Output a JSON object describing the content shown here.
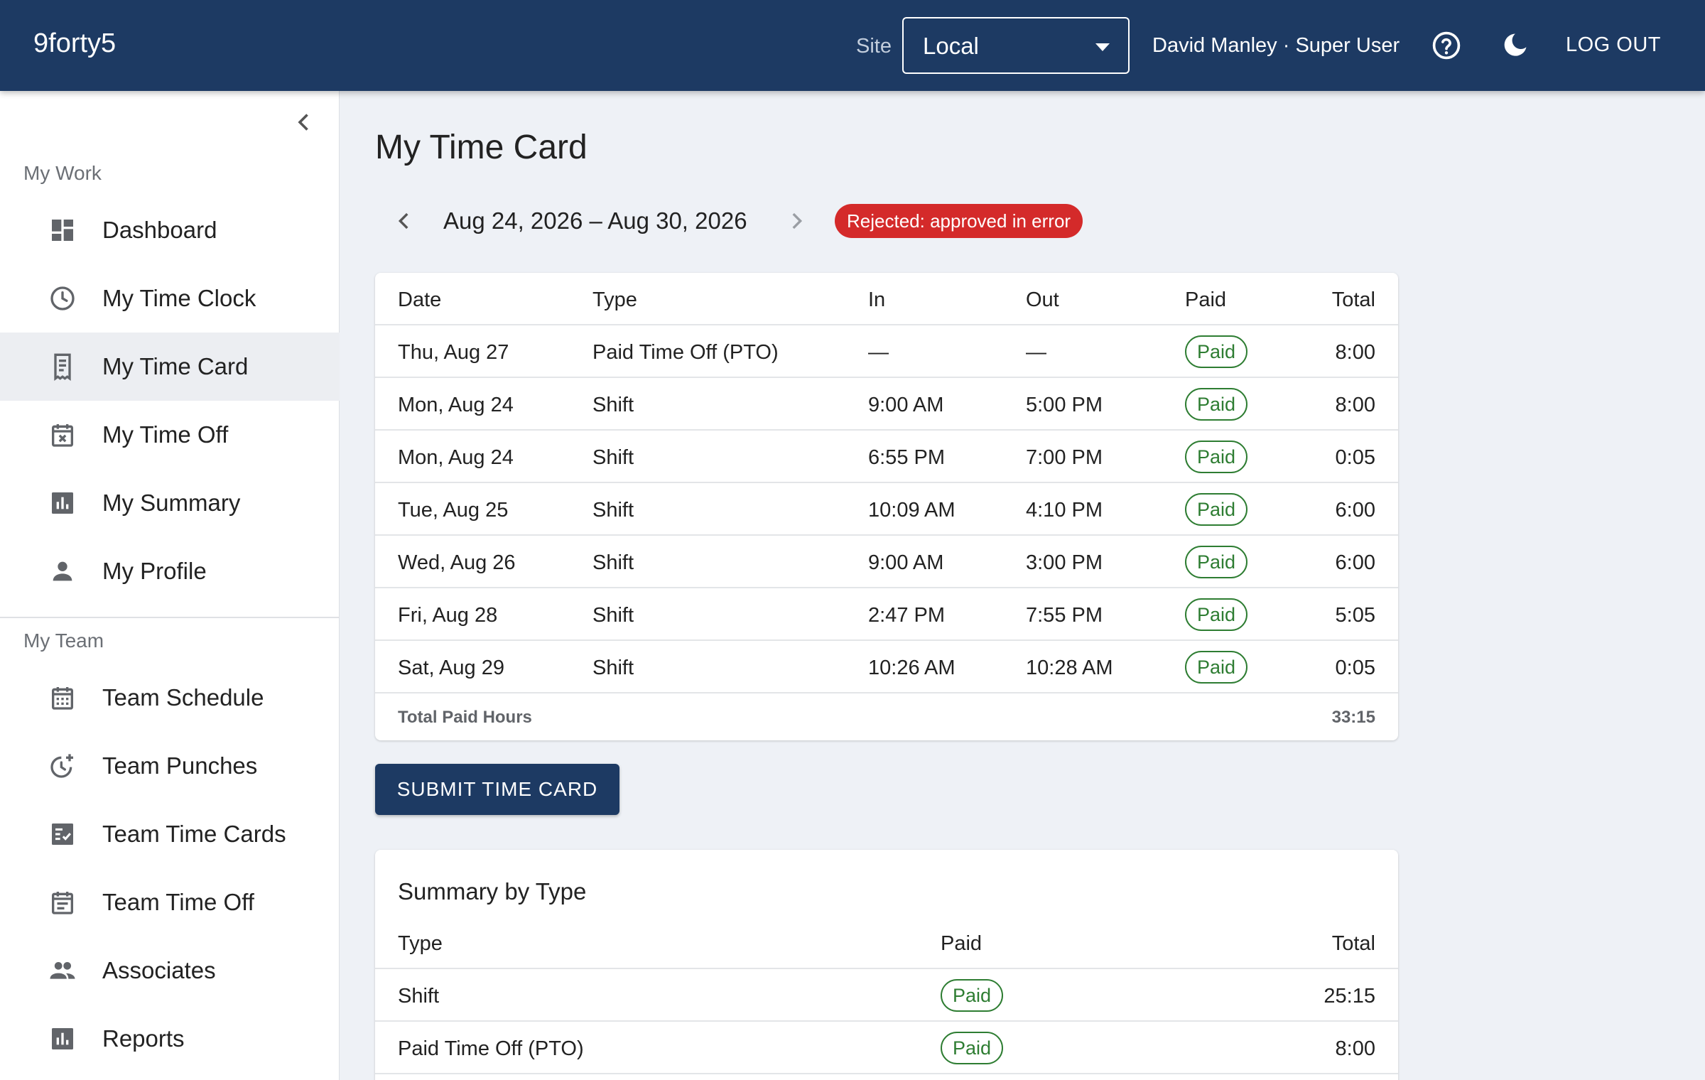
{
  "app": {
    "brand": "9forty5"
  },
  "header": {
    "site_label": "Site",
    "site_value": "Local",
    "user": "David Manley · Super User",
    "logout": "LOG OUT",
    "help_icon": "help-circle-icon",
    "theme_icon": "moon-icon"
  },
  "sidebar": {
    "my_work_label": "My Work",
    "my_team_label": "My Team",
    "my_work": [
      {
        "label": "Dashboard",
        "icon": "dashboard-icon"
      },
      {
        "label": "My Time Clock",
        "icon": "clock-icon"
      },
      {
        "label": "My Time Card",
        "icon": "receipt-icon",
        "active": true
      },
      {
        "label": "My Time Off",
        "icon": "calendar-x-icon"
      },
      {
        "label": "My Summary",
        "icon": "bar-chart-icon"
      },
      {
        "label": "My Profile",
        "icon": "person-icon"
      }
    ],
    "my_team": [
      {
        "label": "Team Schedule",
        "icon": "calendar-grid-icon"
      },
      {
        "label": "Team Punches",
        "icon": "clock-plus-icon"
      },
      {
        "label": "Team Time Cards",
        "icon": "checklist-icon"
      },
      {
        "label": "Team Time Off",
        "icon": "calendar-lines-icon"
      },
      {
        "label": "Associates",
        "icon": "people-icon"
      },
      {
        "label": "Reports",
        "icon": "bar-chart-icon"
      }
    ]
  },
  "main": {
    "title": "My Time Card",
    "date_range": "Aug 24, 2026 – Aug 30, 2026",
    "status": "Rejected: approved in error",
    "status_color": "#d42a2a",
    "table": {
      "headers": {
        "date": "Date",
        "type": "Type",
        "in": "In",
        "out": "Out",
        "paid": "Paid",
        "total": "Total"
      },
      "rows": [
        {
          "date": "Thu, Aug 27",
          "type": "Paid Time Off (PTO)",
          "in": "—",
          "out": "—",
          "paid": "Paid",
          "total": "8:00"
        },
        {
          "date": "Mon, Aug 24",
          "type": "Shift",
          "in": "9:00 AM",
          "out": "5:00 PM",
          "paid": "Paid",
          "total": "8:00"
        },
        {
          "date": "Mon, Aug 24",
          "type": "Shift",
          "in": "6:55 PM",
          "out": "7:00 PM",
          "paid": "Paid",
          "total": "0:05"
        },
        {
          "date": "Tue, Aug 25",
          "type": "Shift",
          "in": "10:09 AM",
          "out": "4:10 PM",
          "paid": "Paid",
          "total": "6:00"
        },
        {
          "date": "Wed, Aug 26",
          "type": "Shift",
          "in": "9:00 AM",
          "out": "3:00 PM",
          "paid": "Paid",
          "total": "6:00"
        },
        {
          "date": "Fri, Aug 28",
          "type": "Shift",
          "in": "2:47 PM",
          "out": "7:55 PM",
          "paid": "Paid",
          "total": "5:05"
        },
        {
          "date": "Sat, Aug 29",
          "type": "Shift",
          "in": "10:26 AM",
          "out": "10:28 AM",
          "paid": "Paid",
          "total": "0:05"
        }
      ],
      "footer_label": "Total Paid Hours",
      "footer_total": "33:15"
    },
    "submit_label": "SUBMIT TIME CARD",
    "summary": {
      "title": "Summary by Type",
      "headers": {
        "type": "Type",
        "paid": "Paid",
        "total": "Total"
      },
      "rows": [
        {
          "type": "Shift",
          "paid": "Paid",
          "total": "25:15"
        },
        {
          "type": "Paid Time Off (PTO)",
          "paid": "Paid",
          "total": "8:00"
        }
      ]
    }
  },
  "colors": {
    "header_bg": "#1d3a63",
    "paid_green": "#2e7d32",
    "page_bg": "#eef1f6"
  }
}
